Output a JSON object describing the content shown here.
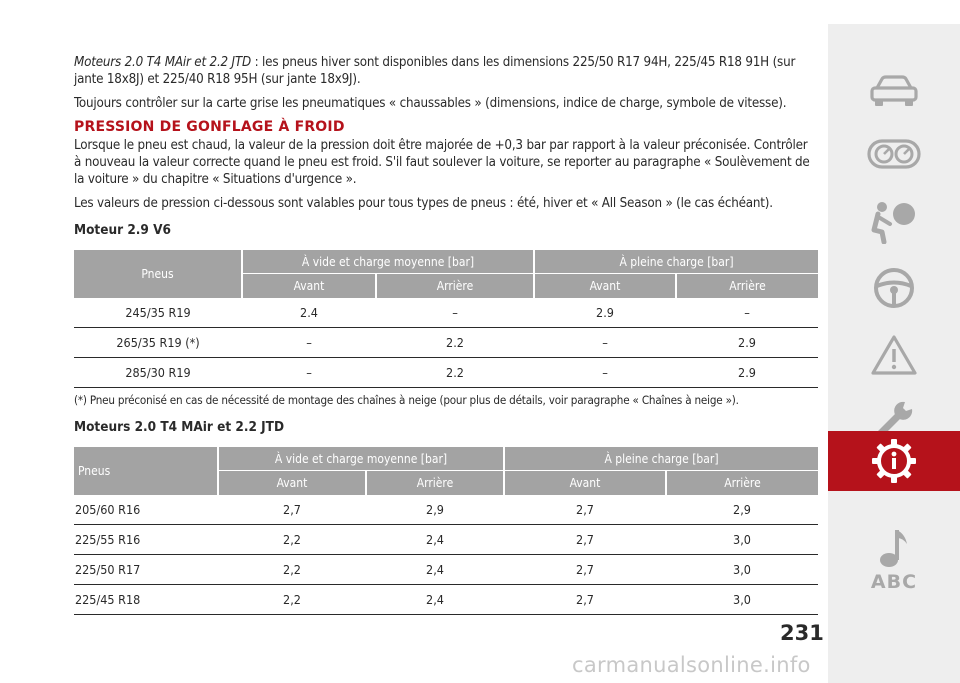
{
  "intro": {
    "lead_italic": "Moteurs 2.0 T4 MAir et 2.2 JTD",
    "lead_text": " : les pneus hiver sont disponibles dans les dimensions 225/50 R17 94H, 225/45 R18 91H (sur jante 18x8J) et 225/40 R18 95H (sur jante 18x9J).",
    "para2": "Toujours contrôler sur la carte grise les pneumatiques « chaussables » (dimensions, indice de charge, symbole de vitesse)."
  },
  "section": {
    "title": "PRESSION DE GONFLAGE À FROID",
    "para1": "Lorsque le pneu est chaud, la valeur de la pression doit être majorée de +0,3 bar par rapport à la valeur préconisée. Contrôler à nouveau la valeur correcte quand le pneu est froid. S'il faut soulever la voiture, se reporter au paragraphe « Soulèvement de la voiture » du chapitre « Situations d'urgence ».",
    "para2": "Les valeurs de pression ci-dessous sont valables pour tous types de pneus : été, hiver et « All Season » (le cas échéant)."
  },
  "table1": {
    "title": "Moteur 2.9 V6",
    "head_tyres": "Pneus",
    "head_group1": "À vide et charge moyenne [bar]",
    "head_group2": "À pleine charge [bar]",
    "head_front": "Avant",
    "head_rear": "Arrière",
    "rows": [
      [
        "245/35 R19",
        "2.4",
        "–",
        "2.9",
        "–"
      ],
      [
        "265/35 R19 (*)",
        "–",
        "2.2",
        "–",
        "2.9"
      ],
      [
        "285/30 R19",
        "–",
        "2.2",
        "–",
        "2.9"
      ]
    ],
    "note": "(*) Pneu préconisé en cas de nécessité de montage des chaînes à neige (pour plus de détails, voir paragraphe « Chaînes à neige »)."
  },
  "table2": {
    "title": "Moteurs 2.0 T4 MAir et 2.2 JTD",
    "head_tyres": "Pneus",
    "head_group1": "À vide et charge moyenne [bar]",
    "head_group2": "À pleine charge [bar]",
    "head_front": "Avant",
    "head_rear": "Arrière",
    "rows": [
      [
        "205/60 R16",
        "2,7",
        "2,9",
        "2,7",
        "2,9"
      ],
      [
        "225/55 R16",
        "2,2",
        "2,4",
        "2,7",
        "3,0"
      ],
      [
        "225/50 R17",
        "2,2",
        "2,4",
        "2,7",
        "3,0"
      ],
      [
        "225/45 R18",
        "2,2",
        "2,4",
        "2,7",
        "3,0"
      ]
    ]
  },
  "sidebar": {
    "icons": [
      "car-icon",
      "dashboard-icon",
      "airbag-icon",
      "steering-wheel-icon",
      "warning-triangle-icon",
      "wrench-icon",
      "technical-data-icon",
      "music-note-icon"
    ],
    "abc_label": "ABC",
    "active_color": "#b5121b"
  },
  "page_number": "231",
  "watermark": "carmanualsonline.info"
}
